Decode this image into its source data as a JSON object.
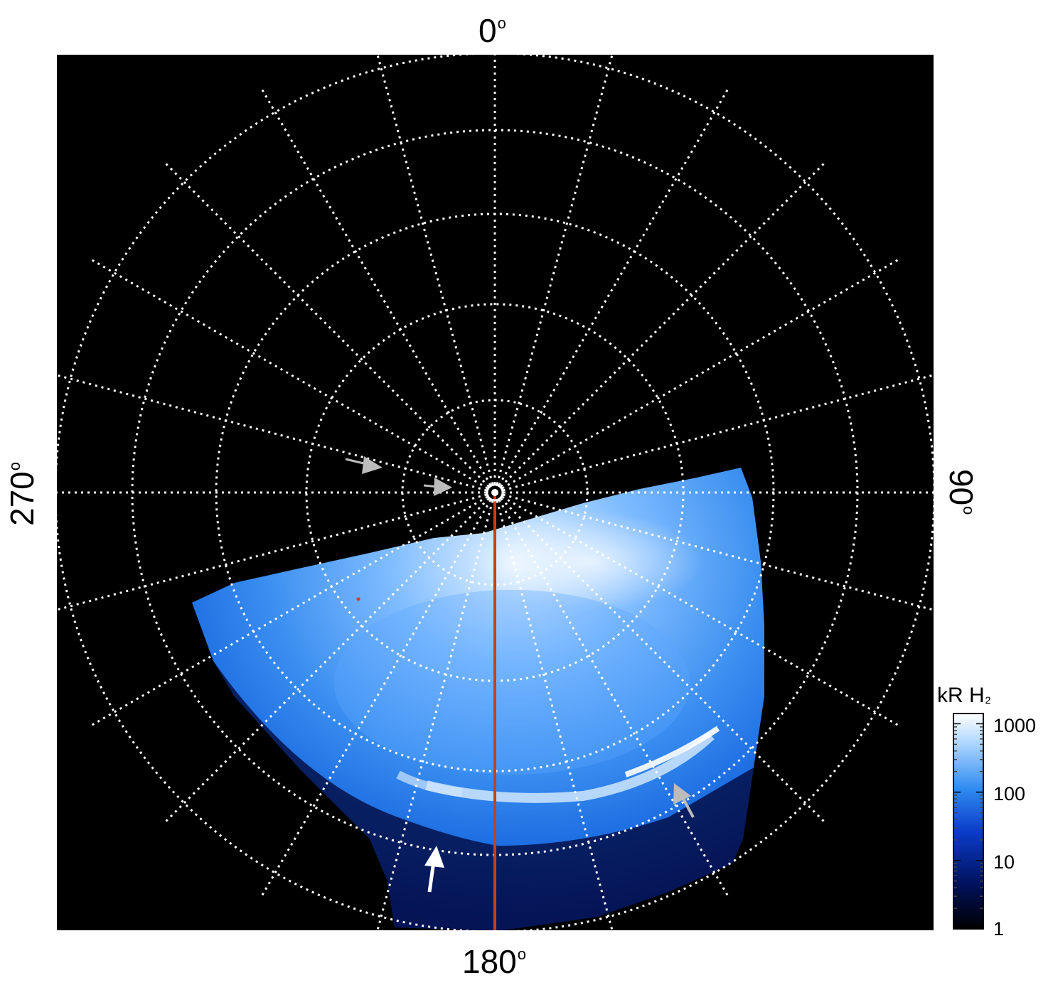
{
  "map": {
    "longitude_labels": {
      "top": "0",
      "right": "90",
      "bottom": "180",
      "left": "270",
      "unit_symbol": "o"
    },
    "colorbar": {
      "title": "kR H",
      "title_subscript": "2",
      "scale": "log",
      "ticks": [
        "1",
        "10",
        "100",
        "1000"
      ],
      "colors": [
        "#000000",
        "#00105a",
        "#0a3cc8",
        "#2f8bf0",
        "#a6d2ff",
        "#ffffff"
      ]
    },
    "colors": {
      "background": "#000000",
      "grid": "#ffffff",
      "meridian_marker": "#c8401a",
      "arrow_gray": "#bcbcbc",
      "arrow_white": "#ffffff"
    },
    "grid_style": "dotted",
    "markers": [
      "gray-arrow",
      "gray-arrow",
      "gray-arrow",
      "white-arrow"
    ]
  }
}
